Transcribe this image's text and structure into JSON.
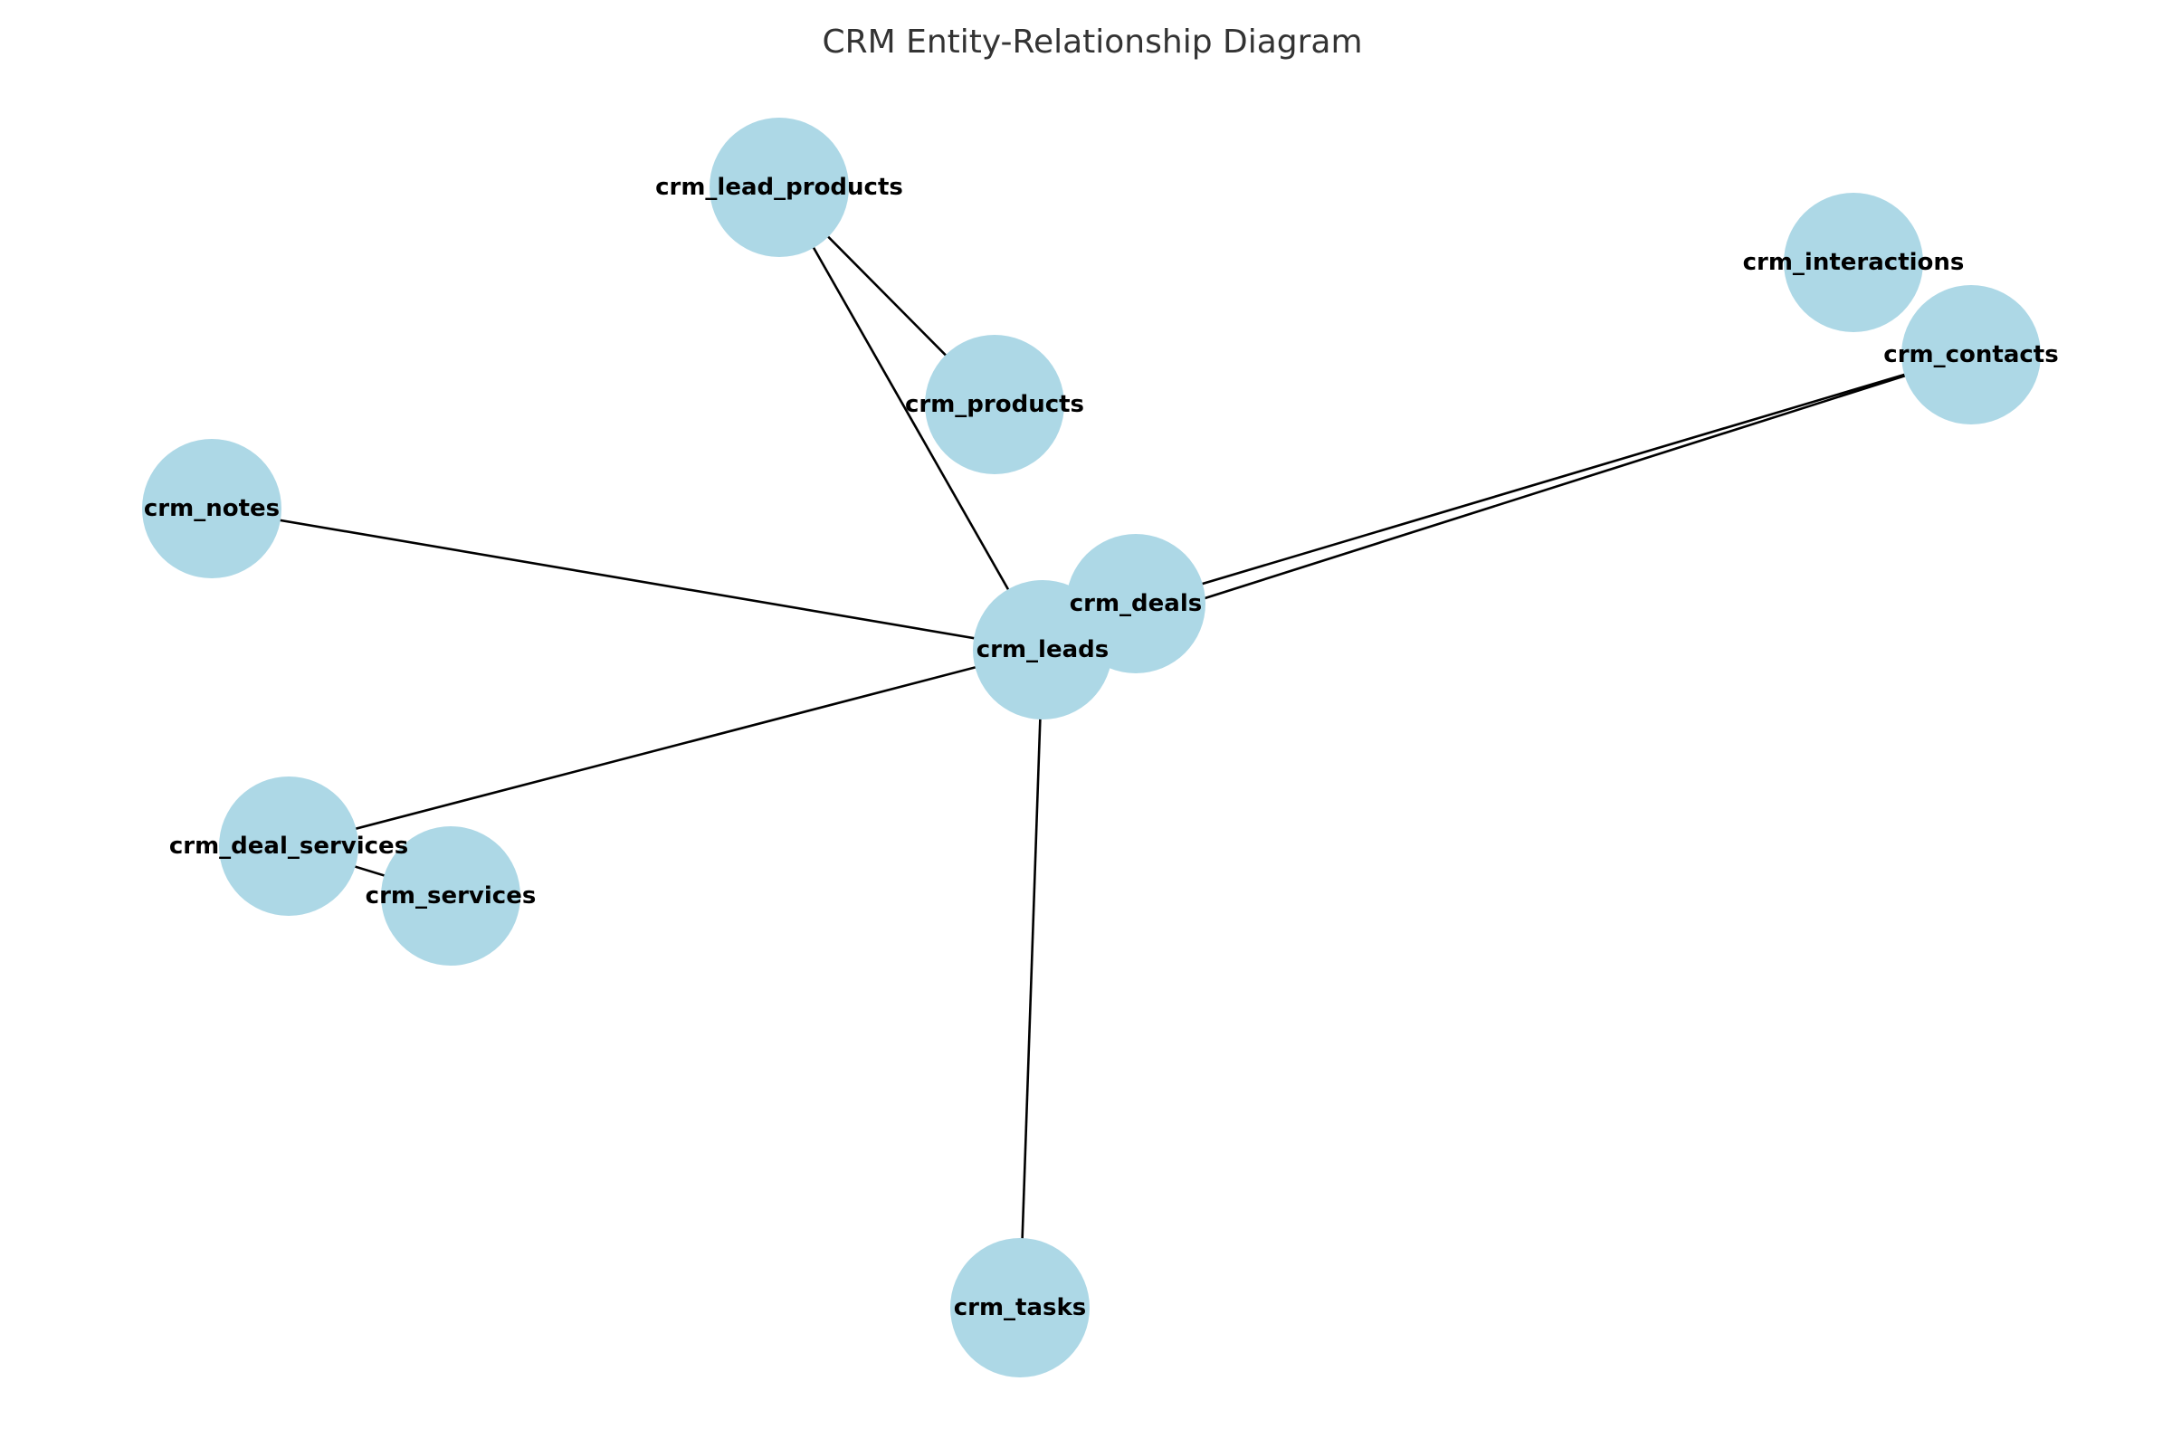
{
  "diagram": {
    "title": "CRM Entity-Relationship Diagram",
    "node_color": "#add8e6",
    "edge_color": "#000000",
    "nodes": [
      {
        "id": "crm_lead_products",
        "label": "crm_lead_products"
      },
      {
        "id": "crm_products",
        "label": "crm_products"
      },
      {
        "id": "crm_interactions",
        "label": "crm_interactions"
      },
      {
        "id": "crm_contacts",
        "label": "crm_contacts"
      },
      {
        "id": "crm_notes",
        "label": "crm_notes"
      },
      {
        "id": "crm_deals",
        "label": "crm_deals"
      },
      {
        "id": "crm_leads",
        "label": "crm_leads"
      },
      {
        "id": "crm_deal_services",
        "label": "crm_deal_services"
      },
      {
        "id": "crm_services",
        "label": "crm_services"
      },
      {
        "id": "crm_tasks",
        "label": "crm_tasks"
      }
    ],
    "edges": [
      {
        "from": "crm_lead_products",
        "to": "crm_products"
      },
      {
        "from": "crm_lead_products",
        "to": "crm_leads"
      },
      {
        "from": "crm_notes",
        "to": "crm_leads"
      },
      {
        "from": "crm_deals",
        "to": "crm_contacts"
      },
      {
        "from": "crm_leads",
        "to": "crm_contacts"
      },
      {
        "from": "crm_leads",
        "to": "crm_deal_services"
      },
      {
        "from": "crm_deal_services",
        "to": "crm_services"
      },
      {
        "from": "crm_leads",
        "to": "crm_tasks"
      }
    ]
  }
}
